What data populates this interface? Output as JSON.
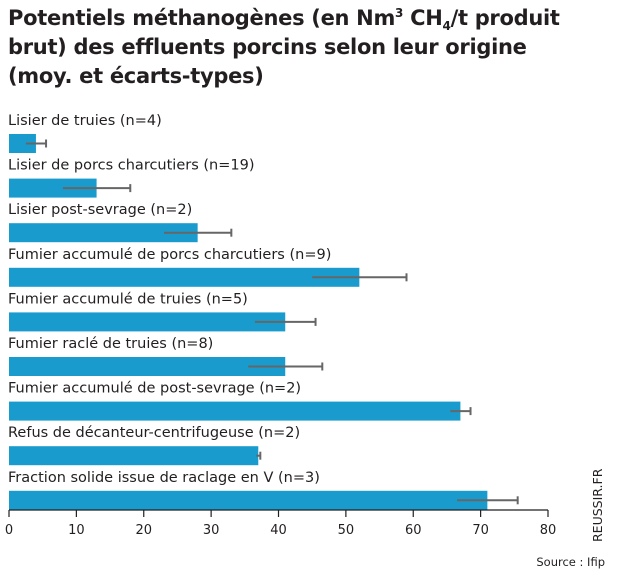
{
  "title": {
    "part1": "Potentiels méthanogènes (en Nm",
    "sup": "3",
    "part2": " CH",
    "sub": "4",
    "part3": "/t produit brut) des effluents porcins selon leur origine (moy. et écarts-types)"
  },
  "chart_data": {
    "type": "bar",
    "orientation": "horizontal",
    "title": "Potentiels méthanogènes (en Nm3 CH4/t produit brut) des effluents porcins selon leur origine (moy. et écarts-types)",
    "categories": [
      "Lisier de truies (n=4)",
      "Lisier de porcs charcutiers (n=19)",
      "Lisier post-sevrage (n=2)",
      "Fumier accumulé de porcs charcutiers (n=9)",
      "Fumier accumulé de truies (n=5)",
      "Fumier raclé de truies (n=8)",
      "Fumier accumulé de post-sevrage (n=2)",
      "Refus de décanteur-centrifugeuse (n=2)",
      "Fraction solide issue de raclage en V  (n=3)"
    ],
    "values": [
      4,
      13,
      28,
      52,
      41,
      41,
      67,
      37,
      71
    ],
    "errors": [
      1.5,
      5,
      5,
      7,
      4.5,
      5.5,
      1.5,
      0.3,
      4.5
    ],
    "xlim": [
      0,
      80
    ],
    "xticks": [
      0,
      10,
      20,
      30,
      40,
      50,
      60,
      70,
      80
    ],
    "bar_color": "#1a9bce",
    "error_color": "#666666",
    "grid": false
  },
  "watermark": "REUSSIR.FR",
  "source": "Source : Ifip"
}
